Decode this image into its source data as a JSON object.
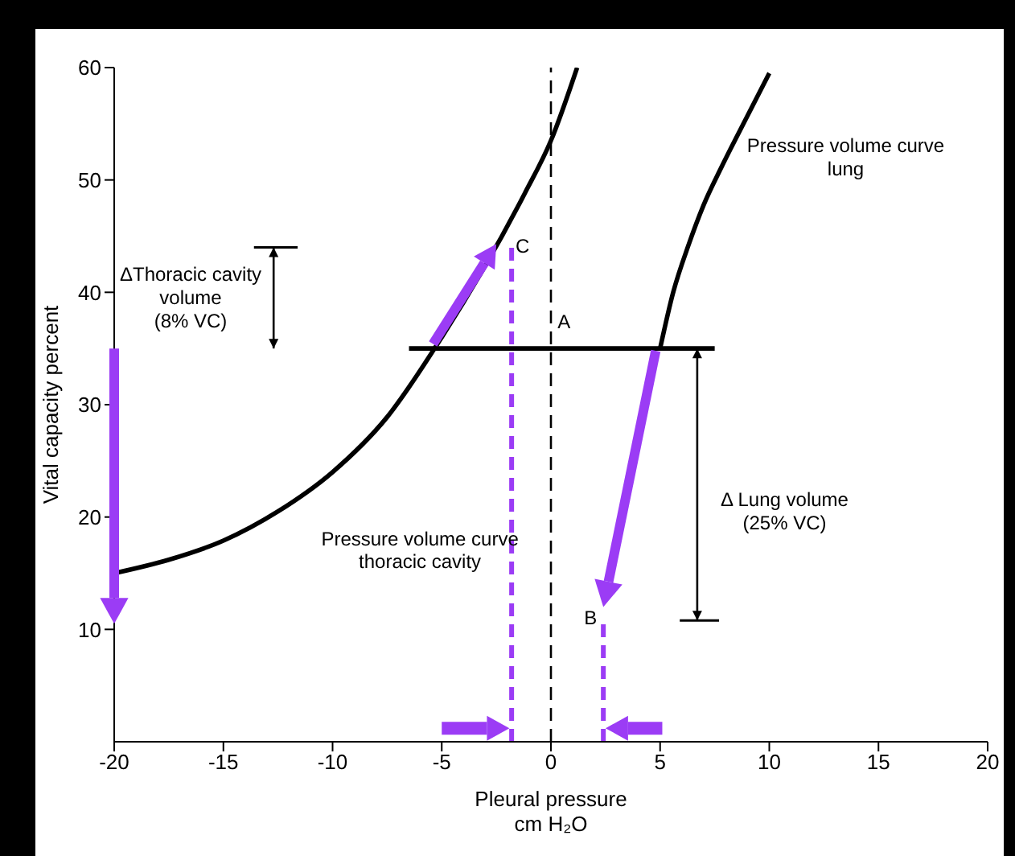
{
  "chart_data": {
    "type": "line",
    "xlabel": "Pleural pressure\ncm H₂O",
    "ylabel": "Vital capacity percent",
    "xlim": [
      -20,
      20
    ],
    "ylim": [
      0,
      60
    ],
    "xticks": [
      -20,
      -15,
      -10,
      -5,
      0,
      5,
      10,
      15,
      20
    ],
    "yticks": [
      10,
      20,
      30,
      40,
      50,
      60
    ],
    "marker": "none",
    "series": [
      {
        "color": "#000000",
        "x": [
          -20,
          -17.5,
          -15,
          -12.5,
          -10,
          -7.5,
          -5,
          -1.2,
          0,
          1.2
        ],
        "values": [
          15,
          16.2,
          17.9,
          20.5,
          24,
          28.9,
          36,
          48.8,
          53.5,
          60
        ]
      },
      {
        "color": "#000000",
        "x": [
          5,
          5.6,
          6.3,
          7,
          7.8,
          9,
          10
        ],
        "values": [
          35,
          40,
          44.2,
          47.8,
          51.1,
          55.7,
          59.5
        ]
      },
      {
        "color": "#000000",
        "x": [
          -6.5,
          7.5
        ],
        "values": [
          35,
          35
        ]
      },
      {
        "color": "#9b3cf5",
        "line_style": "dashed",
        "x": [
          -1.8,
          -1.8
        ],
        "values": [
          0,
          44
        ]
      },
      {
        "color": "#9b3cf5",
        "line_style": "dashed",
        "x": [
          2.4,
          2.4
        ],
        "values": [
          0,
          11
        ]
      }
    ],
    "ref_lines": [
      {
        "axis": "x",
        "value": 0,
        "color": "#000000",
        "line_style": "dashed"
      }
    ],
    "annotations": [
      "A",
      {
        "text": "B",
        "x": 2.4,
        "y": 11
      },
      "C",
      "Pressure volume curve\nlung",
      "Pressure volume curve\nthoracic cavity",
      "ΔThoracic cavity\nvolume\n(8% VC)",
      "Δ Lung volume\n(25% VC)"
    ]
  }
}
